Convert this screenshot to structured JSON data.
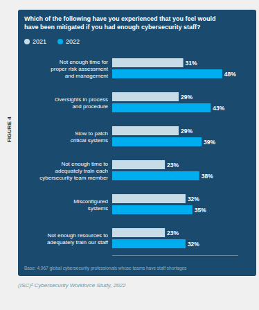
{
  "chart_data": {
    "type": "bar",
    "orientation": "horizontal",
    "title": "Which of the following have you experienced that you feel would\nhave been mitigated if you had enough cybersecurity staff?",
    "categories": [
      "Not enough time for\nproper risk assessment\nand management",
      "Oversights in process\nand procedure",
      "Slow to patch\ncritical systems",
      "Not enough time to\nadequately train each\ncybersecurity team member",
      "Misconfigured\nsystems",
      "Not enough resources to\nadequately train our staff"
    ],
    "series": [
      {
        "name": "2021",
        "color": "#c8dce8",
        "values": [
          31,
          29,
          29,
          23,
          32,
          23
        ],
        "value_labels": [
          "31%",
          "29%",
          "29%",
          "23%",
          "32%",
          "23%"
        ]
      },
      {
        "name": "2022",
        "color": "#00aeef",
        "values": [
          48,
          43,
          39,
          38,
          35,
          32
        ],
        "value_labels": [
          "48%",
          "43%",
          "39%",
          "38%",
          "35%",
          "32%"
        ]
      }
    ],
    "xlim": [
      0,
      55
    ],
    "legend": "top-left",
    "data_labels": true,
    "tick_labels": "y",
    "grid": false,
    "annotations": [
      "FIGURE 4",
      "Base: 4,967 global cybersecurity professionals whose teams have staff shortages",
      "(ISC)² Cybersecurity Workforce Study, 2022"
    ]
  }
}
